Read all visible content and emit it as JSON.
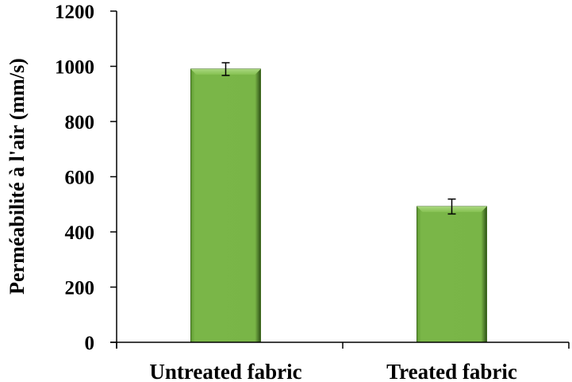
{
  "chart_data": {
    "type": "bar",
    "title": "",
    "xlabel": "",
    "ylabel": "Perméabilité à l'air (mm/s)",
    "categories": [
      "Untreated fabric",
      "Treated fabric"
    ],
    "values": [
      990,
      492
    ],
    "error": [
      23,
      27
    ],
    "ylim": [
      0,
      1200
    ],
    "yticks": [
      0,
      200,
      400,
      600,
      800,
      1000,
      1200
    ],
    "grid": false,
    "legend": null,
    "bar_color": "#7ab648",
    "bar_edge_color": "#3f6b1f"
  }
}
